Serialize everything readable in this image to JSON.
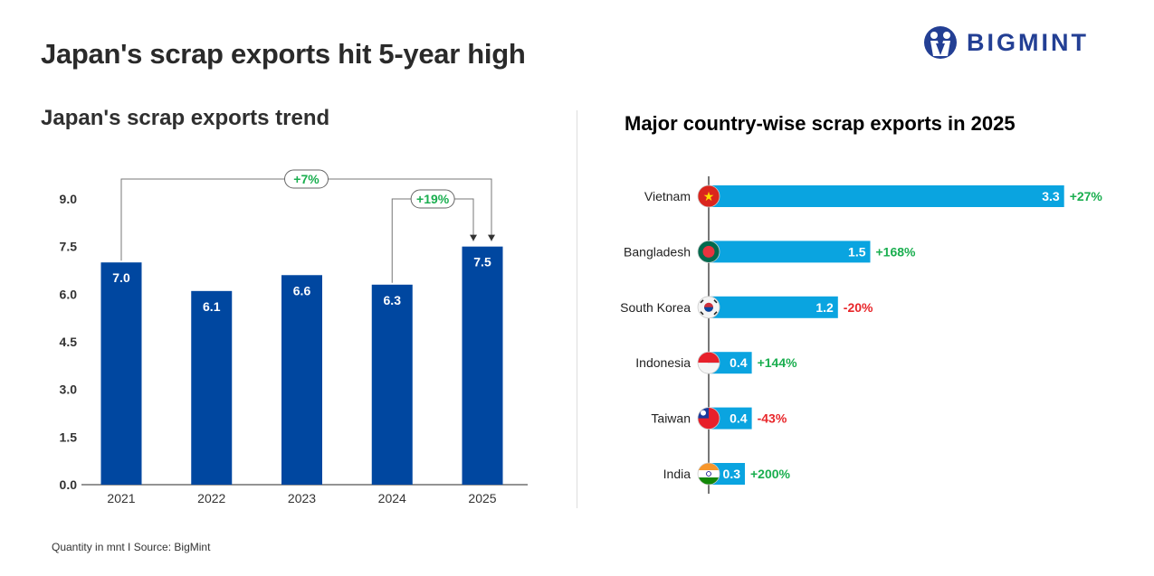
{
  "header": {
    "title": "Japan's scrap exports hit 5-year high",
    "logo_text": "BIGMINT"
  },
  "footer": {
    "note": "Quantity in mnt  I  Source: BigMint"
  },
  "colors": {
    "bar_left": "#0047a0",
    "bar_right": "#0aa4e0",
    "positive": "#1aae4f",
    "negative": "#e8262a",
    "logo": "#233f94"
  },
  "chart_data": [
    {
      "type": "bar",
      "title": "Japan's scrap exports trend",
      "categories": [
        "2021",
        "2022",
        "2023",
        "2024",
        "2025"
      ],
      "values": [
        7.0,
        6.1,
        6.6,
        6.3,
        7.5
      ],
      "data_labels": [
        "7.0",
        "6.1",
        "6.6",
        "6.3",
        "7.5"
      ],
      "ylim": [
        0,
        9.0
      ],
      "yticks": [
        "0.0",
        "1.5",
        "3.0",
        "4.5",
        "6.0",
        "7.5",
        "9.0"
      ],
      "grid": false,
      "annotations": [
        {
          "from": "2021",
          "to": "2025",
          "label": "+7%"
        },
        {
          "from": "2024",
          "to": "2025",
          "label": "+19%"
        }
      ]
    },
    {
      "type": "bar",
      "orientation": "horizontal",
      "title": "Major country-wise scrap exports in 2025",
      "categories": [
        "Vietnam",
        "Bangladesh",
        "South Korea",
        "Indonesia",
        "Taiwan",
        "India"
      ],
      "values": [
        3.3,
        1.5,
        1.2,
        0.4,
        0.4,
        0.3
      ],
      "data_labels": [
        "3.3",
        "1.5",
        "1.2",
        "0.4",
        "0.4",
        "0.3"
      ],
      "changes": [
        "+27%",
        "+168%",
        "-20%",
        "+144%",
        "-43%",
        "+200%"
      ],
      "flags": [
        "vietnam-flag",
        "bangladesh-flag",
        "south-korea-flag",
        "indonesia-flag",
        "taiwan-flag",
        "india-flag"
      ]
    }
  ]
}
